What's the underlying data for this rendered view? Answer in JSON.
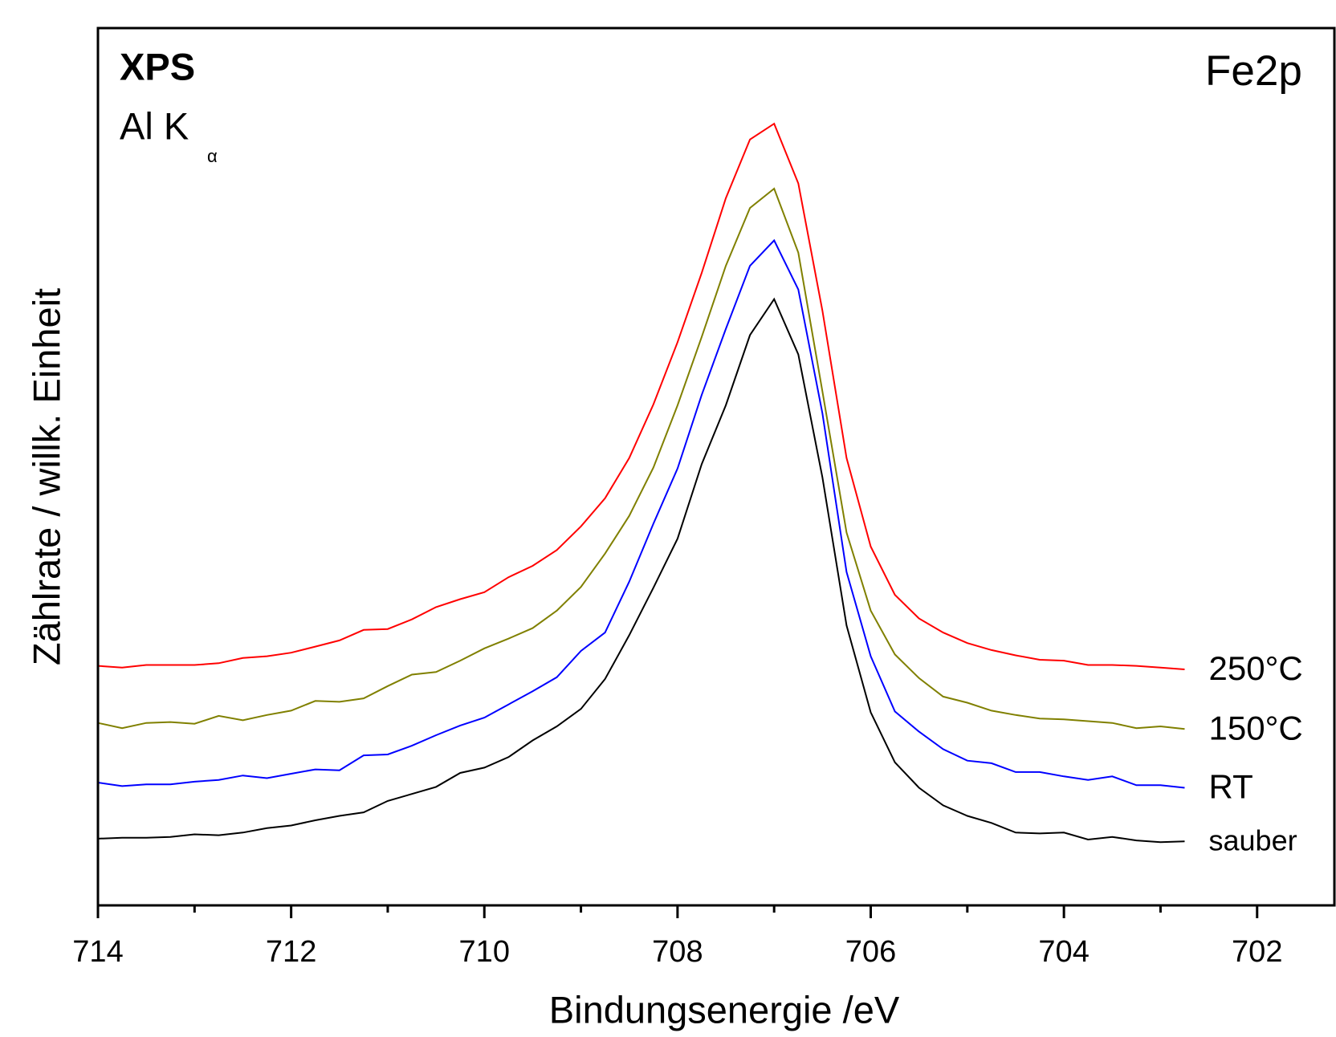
{
  "chart_data": {
    "type": "line",
    "annotations": [
      "XPS",
      "Al K",
      "α",
      "Fe2p"
    ],
    "xlabel": "Bindungsenergie /eV",
    "ylabel": "Zählrate / willk. Einheit",
    "x": [
      714,
      713.75,
      713.5,
      713.25,
      713,
      712.75,
      712.5,
      712.25,
      712,
      711.75,
      711.5,
      711.25,
      711,
      710.75,
      710.5,
      710.25,
      710,
      709.75,
      709.5,
      709.25,
      709,
      708.75,
      708.5,
      708.25,
      708,
      707.75,
      707.5,
      707.25,
      707,
      706.75,
      706.5,
      706.25,
      706,
      705.75,
      705.5,
      705.25,
      705,
      704.75,
      704.5,
      704.25,
      704,
      703.75,
      703.5,
      703.25,
      703,
      702.75
    ],
    "series": [
      {
        "name": "250°C",
        "color": "#ff0000",
        "values": [
          27.3,
          27.1,
          27.4,
          27.4,
          27.4,
          27.6,
          28.2,
          28.4,
          28.8,
          29.5,
          30.2,
          31.4,
          31.5,
          32.6,
          34.0,
          34.9,
          35.7,
          37.4,
          38.7,
          40.5,
          43.2,
          46.4,
          51.0,
          57.1,
          64.2,
          72.1,
          80.6,
          87.3,
          89.1,
          82.3,
          67.8,
          51.0,
          40.9,
          35.4,
          32.7,
          31.1,
          29.9,
          29.1,
          28.5,
          28.0,
          27.9,
          27.4,
          27.4,
          27.3,
          27.1,
          26.9
        ]
      },
      {
        "name": "150°C",
        "color": "#808000",
        "values": [
          20.8,
          20.2,
          20.8,
          20.9,
          20.7,
          21.6,
          21.1,
          21.7,
          22.2,
          23.3,
          23.2,
          23.6,
          25.0,
          26.3,
          26.6,
          27.9,
          29.3,
          30.4,
          31.6,
          33.6,
          36.3,
          40.1,
          44.4,
          49.9,
          57.0,
          64.8,
          72.9,
          79.5,
          81.7,
          74.4,
          58.6,
          42.5,
          33.6,
          28.6,
          25.9,
          23.8,
          23.1,
          22.2,
          21.7,
          21.3,
          21.2,
          21.0,
          20.8,
          20.2,
          20.4,
          20.1
        ]
      },
      {
        "name": "RT",
        "color": "#0000ff",
        "values": [
          14.0,
          13.6,
          13.8,
          13.8,
          14.1,
          14.3,
          14.8,
          14.5,
          15.0,
          15.5,
          15.4,
          17.1,
          17.2,
          18.2,
          19.4,
          20.5,
          21.4,
          22.9,
          24.4,
          26.0,
          29.0,
          31.1,
          36.9,
          43.5,
          49.8,
          58.2,
          65.7,
          72.9,
          75.8,
          70.2,
          56.1,
          38.0,
          28.4,
          22.1,
          19.8,
          17.8,
          16.5,
          16.2,
          15.2,
          15.2,
          14.7,
          14.3,
          14.7,
          13.7,
          13.7,
          13.4
        ]
      },
      {
        "name": "sauber",
        "color": "#000000",
        "values": [
          7.6,
          7.7,
          7.7,
          7.8,
          8.1,
          8.0,
          8.3,
          8.8,
          9.1,
          9.7,
          10.2,
          10.6,
          11.9,
          12.7,
          13.5,
          15.1,
          15.7,
          16.9,
          18.8,
          20.4,
          22.4,
          25.8,
          30.8,
          36.2,
          41.8,
          50.3,
          57.0,
          65.0,
          69.1,
          62.8,
          48.8,
          31.9,
          22.0,
          16.3,
          13.4,
          11.4,
          10.2,
          9.4,
          8.3,
          8.2,
          8.3,
          7.5,
          7.8,
          7.4,
          7.2,
          7.3
        ]
      }
    ],
    "xlim": [
      714,
      701.2
    ],
    "xticks": [
      714,
      712,
      710,
      708,
      706,
      704,
      702
    ],
    "xminorticks": [
      713,
      711,
      709,
      707,
      705,
      703
    ],
    "ylim": [
      0,
      100
    ]
  }
}
